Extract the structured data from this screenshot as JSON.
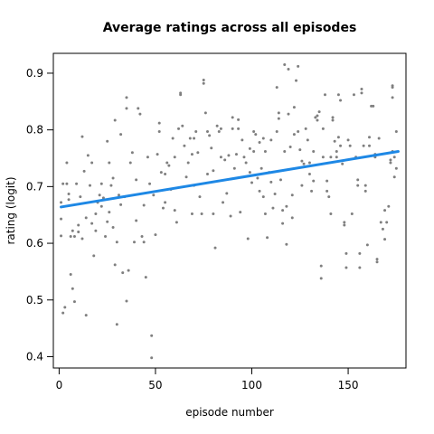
{
  "chart_data": {
    "type": "scatter",
    "title": "Average ratings across all episodes",
    "xlabel": "episode number",
    "ylabel": "rating (logit)",
    "xlim": [
      -3,
      180
    ],
    "ylim": [
      0.38,
      0.935
    ],
    "x_ticks": [
      {
        "value": 0,
        "label": "0"
      },
      {
        "value": 50,
        "label": "50"
      },
      {
        "value": 100,
        "label": "100"
      },
      {
        "value": 150,
        "label": "150"
      }
    ],
    "y_ticks": [
      {
        "value": 0.4,
        "label": "0.4"
      },
      {
        "value": 0.5,
        "label": "0.5"
      },
      {
        "value": 0.6,
        "label": "0.6"
      },
      {
        "value": 0.7,
        "label": "0.7"
      },
      {
        "value": 0.8,
        "label": "0.8"
      },
      {
        "value": 0.9,
        "label": "0.9"
      }
    ],
    "grid": false,
    "point_color": "#7f7f7f",
    "trend_color": "#1e88e5",
    "trend_line": {
      "x": [
        1,
        176
      ],
      "y": [
        0.664,
        0.762
      ]
    },
    "points": [
      [
        1,
        0.643
      ],
      [
        1,
        0.672
      ],
      [
        1,
        0.613
      ],
      [
        2,
        0.705
      ],
      [
        2,
        0.477
      ],
      [
        3,
        0.487
      ],
      [
        4,
        0.742
      ],
      [
        4,
        0.705
      ],
      [
        5,
        0.687
      ],
      [
        5,
        0.677
      ],
      [
        6,
        0.612
      ],
      [
        6,
        0.545
      ],
      [
        7,
        0.622
      ],
      [
        7,
        0.52
      ],
      [
        8,
        0.497
      ],
      [
        8,
        0.612
      ],
      [
        9,
        0.705
      ],
      [
        10,
        0.62
      ],
      [
        10,
        0.632
      ],
      [
        11,
        0.682
      ],
      [
        12,
        0.788
      ],
      [
        12,
        0.608
      ],
      [
        13,
        0.727
      ],
      [
        14,
        0.645
      ],
      [
        14,
        0.473
      ],
      [
        15,
        0.755
      ],
      [
        16,
        0.702
      ],
      [
        17,
        0.742
      ],
      [
        17,
        0.635
      ],
      [
        18,
        0.578
      ],
      [
        19,
        0.622
      ],
      [
        19,
        0.652
      ],
      [
        20,
        0.672
      ],
      [
        21,
        0.685
      ],
      [
        22,
        0.665
      ],
      [
        22,
        0.705
      ],
      [
        23,
        0.68
      ],
      [
        24,
        0.612
      ],
      [
        25,
        0.78
      ],
      [
        25,
        0.638
      ],
      [
        26,
        0.742
      ],
      [
        26,
        0.655
      ],
      [
        27,
        0.702
      ],
      [
        28,
        0.715
      ],
      [
        28,
        0.628
      ],
      [
        29,
        0.817
      ],
      [
        29,
        0.562
      ],
      [
        30,
        0.457
      ],
      [
        30,
        0.602
      ],
      [
        31,
        0.685
      ],
      [
        32,
        0.792
      ],
      [
        32,
        0.668
      ],
      [
        33,
        0.548
      ],
      [
        34,
        0.682
      ],
      [
        35,
        0.838
      ],
      [
        35,
        0.857
      ],
      [
        35,
        0.498
      ],
      [
        36,
        0.552
      ],
      [
        37,
        0.742
      ],
      [
        38,
        0.76
      ],
      [
        39,
        0.602
      ],
      [
        40,
        0.712
      ],
      [
        40,
        0.64
      ],
      [
        41,
        0.838
      ],
      [
        42,
        0.828
      ],
      [
        43,
        0.612
      ],
      [
        44,
        0.667
      ],
      [
        44,
        0.602
      ],
      [
        45,
        0.54
      ],
      [
        46,
        0.752
      ],
      [
        47,
        0.705
      ],
      [
        48,
        0.437
      ],
      [
        48,
        0.398
      ],
      [
        49,
        0.685
      ],
      [
        50,
        0.615
      ],
      [
        51,
        0.757
      ],
      [
        52,
        0.812
      ],
      [
        52,
        0.797
      ],
      [
        53,
        0.725
      ],
      [
        54,
        0.662
      ],
      [
        55,
        0.722
      ],
      [
        55,
        0.672
      ],
      [
        56,
        0.742
      ],
      [
        57,
        0.737
      ],
      [
        58,
        0.695
      ],
      [
        59,
        0.785
      ],
      [
        60,
        0.752
      ],
      [
        60,
        0.658
      ],
      [
        61,
        0.637
      ],
      [
        62,
        0.802
      ],
      [
        63,
        0.862
      ],
      [
        63,
        0.865
      ],
      [
        64,
        0.807
      ],
      [
        65,
        0.772
      ],
      [
        66,
        0.717
      ],
      [
        67,
        0.742
      ],
      [
        68,
        0.785
      ],
      [
        69,
        0.652
      ],
      [
        69,
        0.757
      ],
      [
        70,
        0.785
      ],
      [
        70,
        0.702
      ],
      [
        71,
        0.797
      ],
      [
        72,
        0.76
      ],
      [
        73,
        0.682
      ],
      [
        74,
        0.652
      ],
      [
        75,
        0.888
      ],
      [
        75,
        0.882
      ],
      [
        76,
        0.83
      ],
      [
        77,
        0.797
      ],
      [
        77,
        0.722
      ],
      [
        78,
        0.79
      ],
      [
        79,
        0.768
      ],
      [
        80,
        0.652
      ],
      [
        80,
        0.728
      ],
      [
        81,
        0.592
      ],
      [
        82,
        0.807
      ],
      [
        83,
        0.797
      ],
      [
        84,
        0.802
      ],
      [
        84,
        0.752
      ],
      [
        85,
        0.672
      ],
      [
        86,
        0.747
      ],
      [
        87,
        0.688
      ],
      [
        88,
        0.755
      ],
      [
        89,
        0.648
      ],
      [
        90,
        0.822
      ],
      [
        90,
        0.802
      ],
      [
        91,
        0.732
      ],
      [
        92,
        0.757
      ],
      [
        93,
        0.818
      ],
      [
        93,
        0.802
      ],
      [
        94,
        0.655
      ],
      [
        95,
        0.782
      ],
      [
        96,
        0.752
      ],
      [
        97,
        0.742
      ],
      [
        98,
        0.608
      ],
      [
        99,
        0.767
      ],
      [
        99,
        0.725
      ],
      [
        100,
        0.707
      ],
      [
        101,
        0.797
      ],
      [
        101,
        0.762
      ],
      [
        102,
        0.792
      ],
      [
        103,
        0.715
      ],
      [
        104,
        0.778
      ],
      [
        104,
        0.692
      ],
      [
        105,
        0.732
      ],
      [
        106,
        0.785
      ],
      [
        106,
        0.682
      ],
      [
        107,
        0.762
      ],
      [
        107,
        0.652
      ],
      [
        108,
        0.61
      ],
      [
        109,
        0.725
      ],
      [
        110,
        0.782
      ],
      [
        110,
        0.708
      ],
      [
        111,
        0.662
      ],
      [
        112,
        0.687
      ],
      [
        113,
        0.797
      ],
      [
        113,
        0.875
      ],
      [
        114,
        0.83
      ],
      [
        114,
        0.82
      ],
      [
        115,
        0.712
      ],
      [
        116,
        0.658
      ],
      [
        116,
        0.635
      ],
      [
        117,
        0.915
      ],
      [
        117,
        0.762
      ],
      [
        118,
        0.598
      ],
      [
        118,
        0.665
      ],
      [
        119,
        0.828
      ],
      [
        119,
        0.907
      ],
      [
        120,
        0.77
      ],
      [
        121,
        0.685
      ],
      [
        121,
        0.645
      ],
      [
        122,
        0.84
      ],
      [
        122,
        0.792
      ],
      [
        123,
        0.887
      ],
      [
        124,
        0.912
      ],
      [
        124,
        0.797
      ],
      [
        125,
        0.765
      ],
      [
        126,
        0.745
      ],
      [
        126,
        0.702
      ],
      [
        127,
        0.74
      ],
      [
        128,
        0.802
      ],
      [
        129,
        0.782
      ],
      [
        130,
        0.742
      ],
      [
        130,
        0.722
      ],
      [
        131,
        0.692
      ],
      [
        132,
        0.71
      ],
      [
        132,
        0.762
      ],
      [
        133,
        0.822
      ],
      [
        134,
        0.825
      ],
      [
        134,
        0.817
      ],
      [
        135,
        0.832
      ],
      [
        136,
        0.56
      ],
      [
        136,
        0.538
      ],
      [
        137,
        0.802
      ],
      [
        137,
        0.752
      ],
      [
        138,
        0.862
      ],
      [
        139,
        0.71
      ],
      [
        139,
        0.692
      ],
      [
        140,
        0.682
      ],
      [
        141,
        0.652
      ],
      [
        141,
        0.752
      ],
      [
        142,
        0.817
      ],
      [
        142,
        0.822
      ],
      [
        143,
        0.78
      ],
      [
        144,
        0.752
      ],
      [
        144,
        0.762
      ],
      [
        145,
        0.787
      ],
      [
        145,
        0.862
      ],
      [
        146,
        0.852
      ],
      [
        146,
        0.772
      ],
      [
        147,
        0.74
      ],
      [
        148,
        0.637
      ],
      [
        148,
        0.632
      ],
      [
        149,
        0.582
      ],
      [
        149,
        0.557
      ],
      [
        150,
        0.782
      ],
      [
        151,
        0.772
      ],
      [
        152,
        0.652
      ],
      [
        153,
        0.862
      ],
      [
        154,
        0.752
      ],
      [
        155,
        0.712
      ],
      [
        155,
        0.702
      ],
      [
        156,
        0.582
      ],
      [
        156,
        0.557
      ],
      [
        157,
        0.872
      ],
      [
        157,
        0.865
      ],
      [
        158,
        0.772
      ],
      [
        159,
        0.692
      ],
      [
        159,
        0.702
      ],
      [
        160,
        0.597
      ],
      [
        161,
        0.787
      ],
      [
        161,
        0.772
      ],
      [
        162,
        0.842
      ],
      [
        163,
        0.842
      ],
      [
        164,
        0.757
      ],
      [
        164,
        0.752
      ],
      [
        165,
        0.572
      ],
      [
        165,
        0.567
      ],
      [
        166,
        0.785
      ],
      [
        167,
        0.637
      ],
      [
        168,
        0.625
      ],
      [
        169,
        0.658
      ],
      [
        169,
        0.607
      ],
      [
        170,
        0.637
      ],
      [
        171,
        0.665
      ],
      [
        172,
        0.742
      ],
      [
        173,
        0.857
      ],
      [
        173,
        0.878
      ],
      [
        173,
        0.875
      ],
      [
        174,
        0.717
      ],
      [
        175,
        0.732
      ],
      [
        172,
        0.747
      ],
      [
        173,
        0.762
      ],
      [
        174,
        0.752
      ],
      [
        175,
        0.797
      ]
    ]
  }
}
